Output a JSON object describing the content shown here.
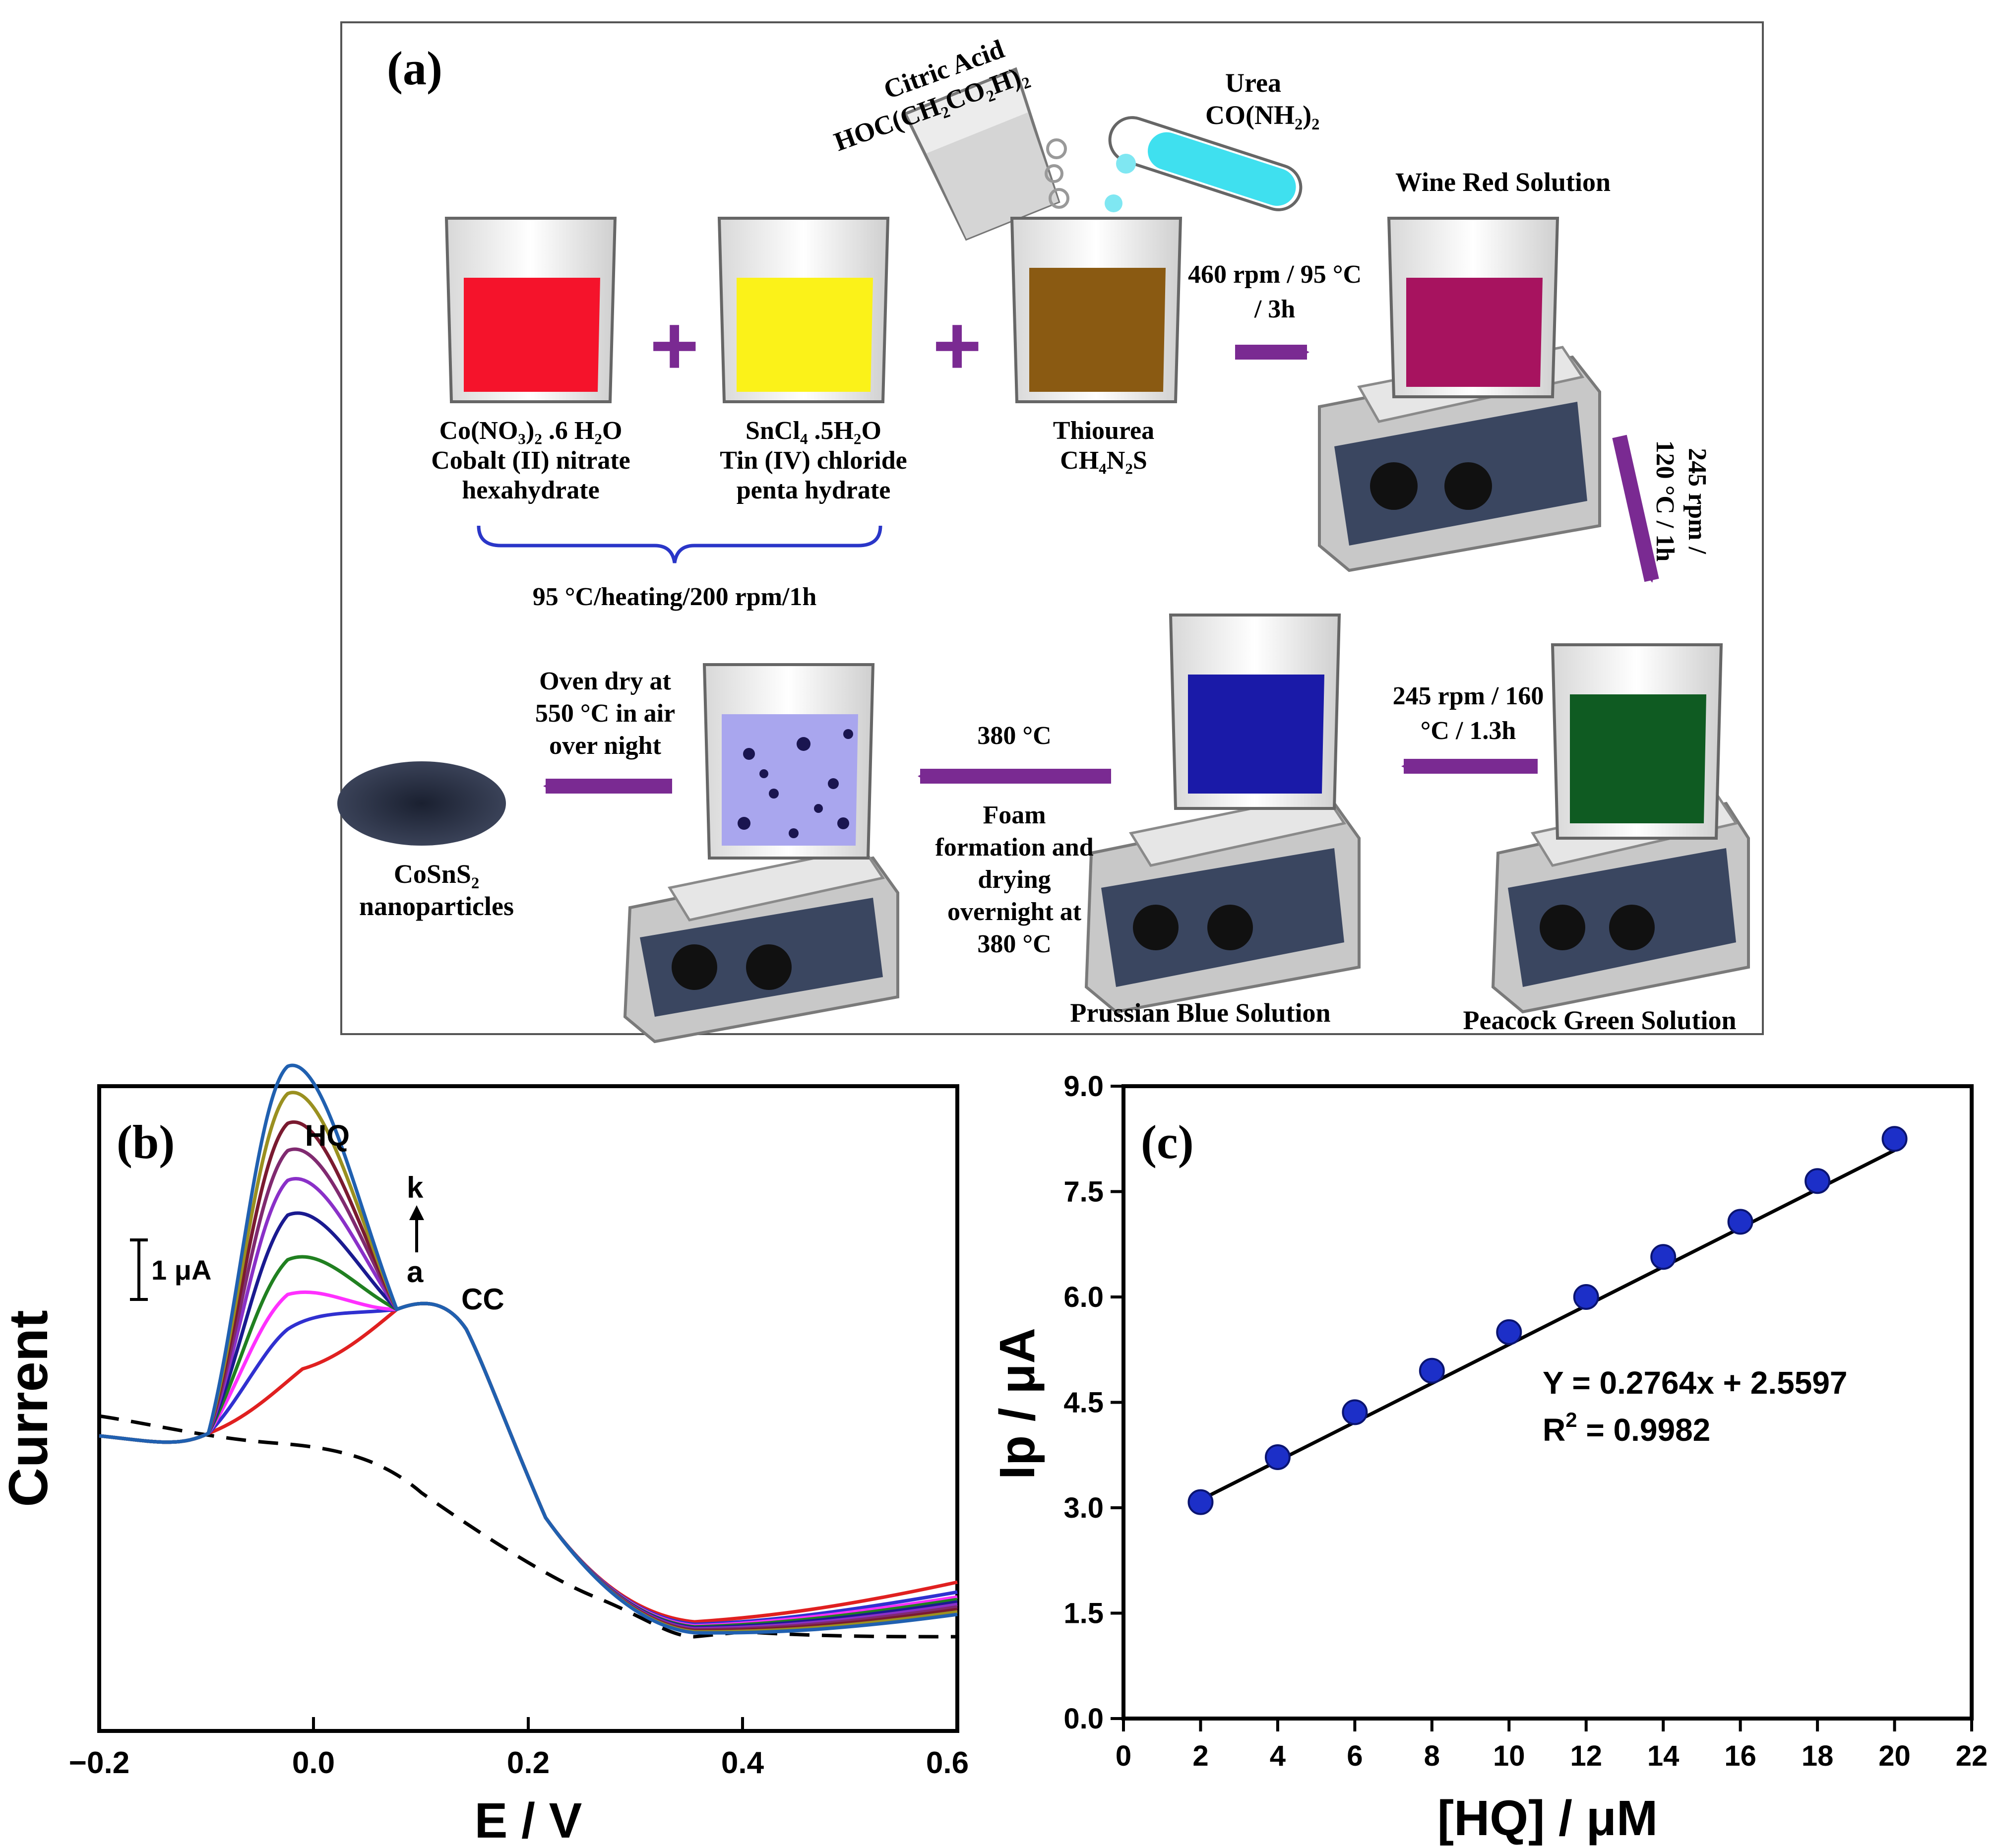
{
  "panel_a": {
    "label": "(a)",
    "reagents": {
      "citric_acid": {
        "name": "Citric Acid",
        "formula": "HOC(CH₂CO₂H)₂"
      },
      "urea": {
        "name": "Urea",
        "formula": "CO(NH₂)₂"
      },
      "cobalt": {
        "line1": "Co(NO₃)₂ .6 H₂O",
        "line2": "Cobalt (II) nitrate",
        "line3": "hexahydrate"
      },
      "tin": {
        "line1": "SnCl₄ .5H₂O",
        "line2": "Tin (IV) chloride",
        "line3": "penta hydrate"
      },
      "thiourea": {
        "line1": "Thiourea",
        "line2": "CH₄N₂S"
      }
    },
    "plus": "+",
    "brace_label": "95 °C/heating/200 rpm/1h",
    "steps": {
      "s1": {
        "line1": "460 rpm / 95 °C",
        "line2": "/ 3h"
      },
      "s2": {
        "line1": "245 rpm /",
        "line2": "120 °C / 1h"
      },
      "s3": {
        "line1": "245 rpm / 160",
        "line2": "°C / 1.3h"
      },
      "s4": {
        "temp": "380 °C",
        "line1": "Foam",
        "line2": "formation and",
        "line3": "drying",
        "line4": "overnight at",
        "line5": "380 °C"
      },
      "s5": {
        "line1": "Oven dry at",
        "line2": "550 °C in air",
        "line3": "over night"
      }
    },
    "solutions": {
      "wine": "Wine Red Solution",
      "green": "Peacock Green Solution",
      "blue": "Prussian Blue Solution"
    },
    "product": {
      "line1": "CoSnS₂",
      "line2": "nanoparticles"
    },
    "colors": {
      "red": "#f5132b",
      "yellow": "#fbf219",
      "brown": "#8a5a12",
      "wine": "#a7135f",
      "green": "#0f5b22",
      "blue": "#1a1aa8",
      "arrow": "#7a2a92",
      "brace": "#2a36c8"
    }
  },
  "panel_b": {
    "label": "(b)",
    "xlabel": "E / V",
    "ylabel": "Current",
    "xticks": [
      "−0.2",
      "0.0",
      "0.2",
      "0.4",
      "0.6"
    ],
    "peak_hq": "HQ",
    "peak_cc": "CC",
    "arrow_top": "k",
    "arrow_bottom": "a",
    "scale_bar": "1 μA",
    "chart_data": {
      "type": "line",
      "x_range": [
        -0.2,
        0.6
      ],
      "series_count": 11,
      "baseline": "dashed",
      "hq_peak_potential_V": 0.02,
      "cc_peak_potential_V": 0.12,
      "series_colors": [
        "#e02020",
        "#3030d0",
        "#ff30ff",
        "#208020",
        "#1a1a90",
        "#8a30c8",
        "#802a70",
        "#7a1a30",
        "#9a9020",
        "#2060b0"
      ]
    }
  },
  "panel_c": {
    "label": "(c)",
    "xlabel": "[HQ] / μM",
    "ylabel": "Ip / μA",
    "equation": "Y = 0.2764x + 2.5597",
    "r2_prefix": "R",
    "r2_sup": "2",
    "r2_value": " = 0.9982",
    "chart_data": {
      "type": "scatter",
      "x": [
        2,
        4,
        6,
        8,
        10,
        12,
        14,
        16,
        18,
        20
      ],
      "y": [
        3.08,
        3.72,
        4.36,
        4.95,
        5.5,
        6.0,
        6.57,
        7.07,
        7.65,
        8.25
      ],
      "xlim": [
        0,
        22
      ],
      "ylim": [
        0,
        9
      ],
      "xticks": [
        "0",
        "2",
        "4",
        "6",
        "8",
        "10",
        "12",
        "14",
        "16",
        "18",
        "20",
        "22"
      ],
      "yticks": [
        "0.0",
        "1.5",
        "3.0",
        "4.5",
        "6.0",
        "7.5",
        "9.0"
      ],
      "fit": {
        "slope": 0.2764,
        "intercept": 2.5597
      },
      "xlabel": "[HQ] / μM",
      "ylabel": "Ip / μA"
    }
  }
}
